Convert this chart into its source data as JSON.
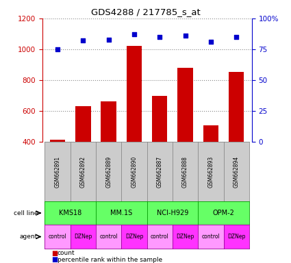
{
  "title": "GDS4288 / 217785_s_at",
  "samples": [
    "GSM662891",
    "GSM662892",
    "GSM662889",
    "GSM662890",
    "GSM662887",
    "GSM662888",
    "GSM662893",
    "GSM662894"
  ],
  "counts": [
    415,
    630,
    665,
    1020,
    700,
    880,
    510,
    855
  ],
  "percentile_ranks": [
    75,
    82,
    83,
    87,
    85,
    86,
    81,
    85
  ],
  "cell_lines": [
    {
      "label": "KMS18",
      "span": [
        0,
        2
      ]
    },
    {
      "label": "MM.1S",
      "span": [
        2,
        4
      ]
    },
    {
      "label": "NCI-H929",
      "span": [
        4,
        6
      ]
    },
    {
      "label": "OPM-2",
      "span": [
        6,
        8
      ]
    }
  ],
  "agents": [
    "control",
    "DZNep",
    "control",
    "DZNep",
    "control",
    "DZNep",
    "control",
    "DZNep"
  ],
  "bar_color": "#cc0000",
  "dot_color": "#0000cc",
  "cell_line_color": "#66ff66",
  "cell_line_border_color": "#009900",
  "agent_control_color": "#ff99ff",
  "agent_dznep_color": "#ff33ff",
  "agent_border_color": "#990099",
  "sample_box_color": "#cccccc",
  "sample_box_border": "#888888",
  "ylim_left": [
    400,
    1200
  ],
  "ylim_right": [
    0,
    100
  ],
  "yticks_left": [
    400,
    600,
    800,
    1000,
    1200
  ],
  "yticks_right": [
    0,
    25,
    50,
    75,
    100
  ],
  "ytick_labels_right": [
    "0",
    "25",
    "50",
    "75",
    "100%"
  ],
  "left_axis_color": "#cc0000",
  "right_axis_color": "#0000cc",
  "grid_color": "#888888",
  "background_color": "#ffffff"
}
